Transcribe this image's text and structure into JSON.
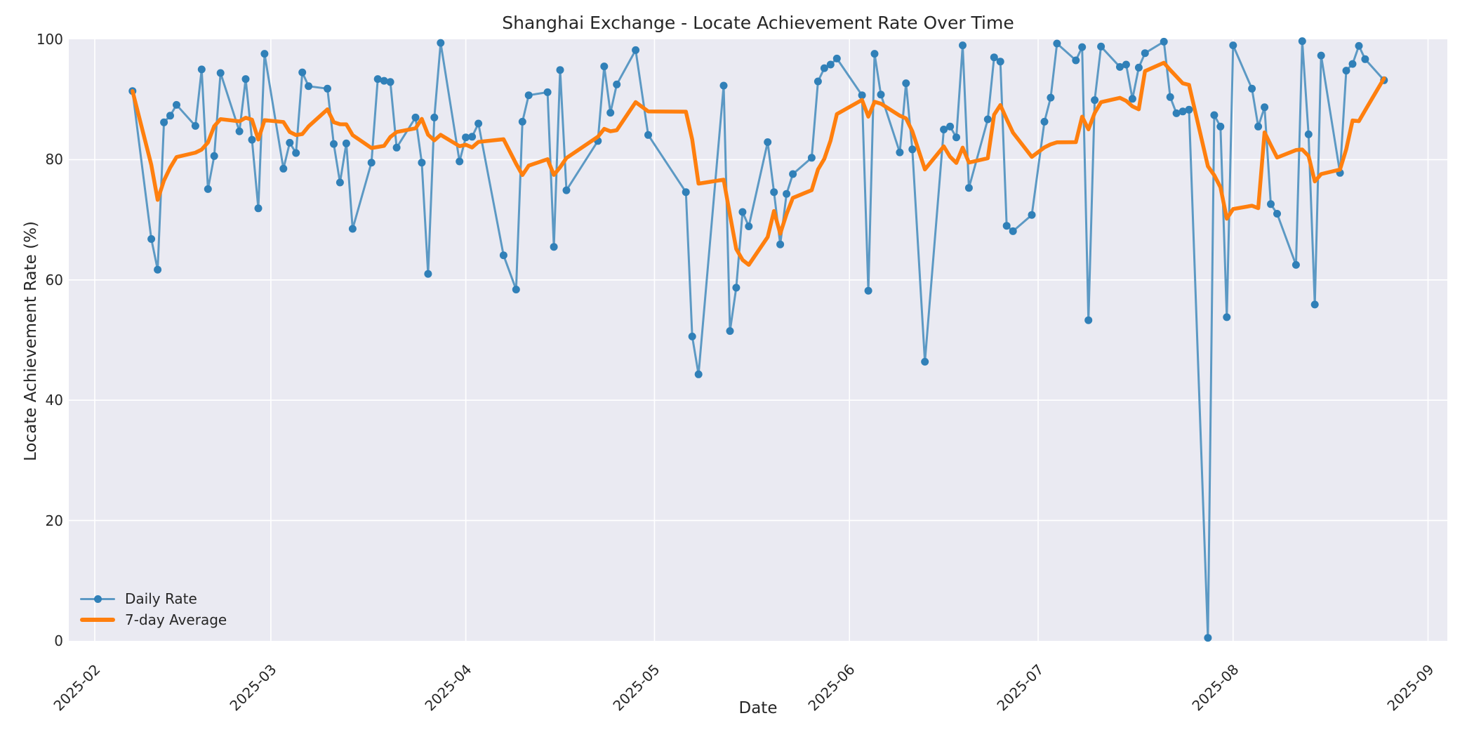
{
  "header": {
    "title": "Shanghai Exchange - Locate Achievement Rate Over Time"
  },
  "axes": {
    "xlabel": "Date",
    "ylabel": "Locate Achievement Rate (%)"
  },
  "legend": {
    "daily_label": "Daily Rate",
    "avg_label": "7-day Average"
  },
  "colors": {
    "daily_line": "#5c99c4",
    "daily_marker": "#3080b8",
    "avg_line": "#ff7f0e",
    "plot_background": "#eaeaf2",
    "gridline": "#ffffff",
    "text": "#262626"
  },
  "chart_data": {
    "type": "line",
    "title": "Shanghai Exchange - Locate Achievement Rate Over Time",
    "xlabel": "Date",
    "ylabel": "Locate Achievement Rate (%)",
    "ylim": [
      0,
      100
    ],
    "yticks": [
      0,
      20,
      40,
      60,
      80,
      100
    ],
    "xticks": [
      "2025-02",
      "2025-03",
      "2025-04",
      "2025-05",
      "2025-06",
      "2025-07",
      "2025-08",
      "2025-09"
    ],
    "grid": true,
    "legend_position": "lower left",
    "series": [
      {
        "name": "Daily Rate",
        "style": "line_with_markers",
        "dates": [
          "2025-02-07",
          "2025-02-10",
          "2025-02-11",
          "2025-02-12",
          "2025-02-13",
          "2025-02-14",
          "2025-02-17",
          "2025-02-18",
          "2025-02-19",
          "2025-02-20",
          "2025-02-21",
          "2025-02-24",
          "2025-02-25",
          "2025-02-26",
          "2025-02-27",
          "2025-02-28",
          "2025-03-03",
          "2025-03-04",
          "2025-03-05",
          "2025-03-06",
          "2025-03-07",
          "2025-03-10",
          "2025-03-11",
          "2025-03-12",
          "2025-03-13",
          "2025-03-14",
          "2025-03-17",
          "2025-03-18",
          "2025-03-19",
          "2025-03-20",
          "2025-03-21",
          "2025-03-24",
          "2025-03-25",
          "2025-03-26",
          "2025-03-27",
          "2025-03-28",
          "2025-03-31",
          "2025-04-01",
          "2025-04-02",
          "2025-04-03",
          "2025-04-07",
          "2025-04-09",
          "2025-04-10",
          "2025-04-11",
          "2025-04-14",
          "2025-04-15",
          "2025-04-16",
          "2025-04-17",
          "2025-04-22",
          "2025-04-23",
          "2025-04-24",
          "2025-04-25",
          "2025-04-28",
          "2025-04-30",
          "2025-05-06",
          "2025-05-07",
          "2025-05-08",
          "2025-05-12",
          "2025-05-13",
          "2025-05-14",
          "2025-05-15",
          "2025-05-16",
          "2025-05-19",
          "2025-05-20",
          "2025-05-21",
          "2025-05-22",
          "2025-05-23",
          "2025-05-26",
          "2025-05-27",
          "2025-05-28",
          "2025-05-29",
          "2025-05-30",
          "2025-06-03",
          "2025-06-04",
          "2025-06-05",
          "2025-06-06",
          "2025-06-09",
          "2025-06-10",
          "2025-06-11",
          "2025-06-13",
          "2025-06-16",
          "2025-06-17",
          "2025-06-18",
          "2025-06-19",
          "2025-06-20",
          "2025-06-23",
          "2025-06-24",
          "2025-06-25",
          "2025-06-26",
          "2025-06-27",
          "2025-06-30",
          "2025-07-02",
          "2025-07-03",
          "2025-07-04",
          "2025-07-07",
          "2025-07-08",
          "2025-07-09",
          "2025-07-10",
          "2025-07-11",
          "2025-07-14",
          "2025-07-15",
          "2025-07-16",
          "2025-07-17",
          "2025-07-18",
          "2025-07-21",
          "2025-07-22",
          "2025-07-23",
          "2025-07-24",
          "2025-07-25",
          "2025-07-28",
          "2025-07-29",
          "2025-07-30",
          "2025-07-31",
          "2025-08-01",
          "2025-08-04",
          "2025-08-05",
          "2025-08-06",
          "2025-08-07",
          "2025-08-08",
          "2025-08-11",
          "2025-08-12",
          "2025-08-13",
          "2025-08-14",
          "2025-08-15",
          "2025-08-18",
          "2025-08-19",
          "2025-08-20",
          "2025-08-21",
          "2025-08-22",
          "2025-08-25"
        ],
        "values": [
          91.4,
          66.8,
          61.7,
          86.2,
          87.3,
          89.1,
          85.6,
          95.0,
          75.1,
          80.6,
          94.4,
          84.7,
          93.4,
          83.3,
          71.9,
          97.6,
          78.5,
          82.8,
          81.1,
          94.5,
          92.2,
          91.8,
          82.6,
          76.2,
          82.7,
          68.5,
          79.5,
          93.4,
          93.1,
          92.9,
          82.0,
          87.0,
          79.5,
          61.0,
          87.0,
          99.4,
          79.7,
          83.7,
          83.8,
          86.0,
          64.1,
          58.4,
          86.3,
          90.7,
          91.2,
          65.5,
          94.9,
          74.9,
          83.1,
          95.5,
          87.8,
          92.5,
          98.2,
          84.1,
          74.6,
          50.6,
          44.3,
          92.3,
          51.5,
          58.7,
          71.3,
          68.9,
          82.9,
          74.6,
          65.9,
          74.3,
          77.6,
          80.3,
          93.0,
          95.2,
          95.8,
          96.8,
          90.7,
          58.2,
          97.6,
          90.8,
          81.2,
          92.7,
          81.7,
          46.4,
          85.0,
          85.5,
          83.7,
          99.0,
          75.3,
          86.7,
          97.0,
          96.3,
          69.0,
          68.1,
          70.8,
          86.3,
          90.3,
          99.3,
          96.5,
          98.7,
          53.3,
          89.9,
          98.8,
          95.4,
          95.8,
          90.1,
          95.3,
          97.7,
          99.6,
          90.4,
          87.7,
          88.0,
          88.3,
          0.5,
          87.4,
          85.5,
          53.8,
          99.0,
          91.8,
          85.5,
          88.7,
          72.6,
          71.0,
          62.5,
          99.7,
          84.2,
          55.9,
          97.3,
          77.8,
          94.8,
          95.9,
          98.9,
          96.7,
          93.2
        ]
      },
      {
        "name": "7-day Average",
        "style": "line",
        "derived": "rolling_mean_of_daily_rate",
        "window": 7
      }
    ]
  }
}
